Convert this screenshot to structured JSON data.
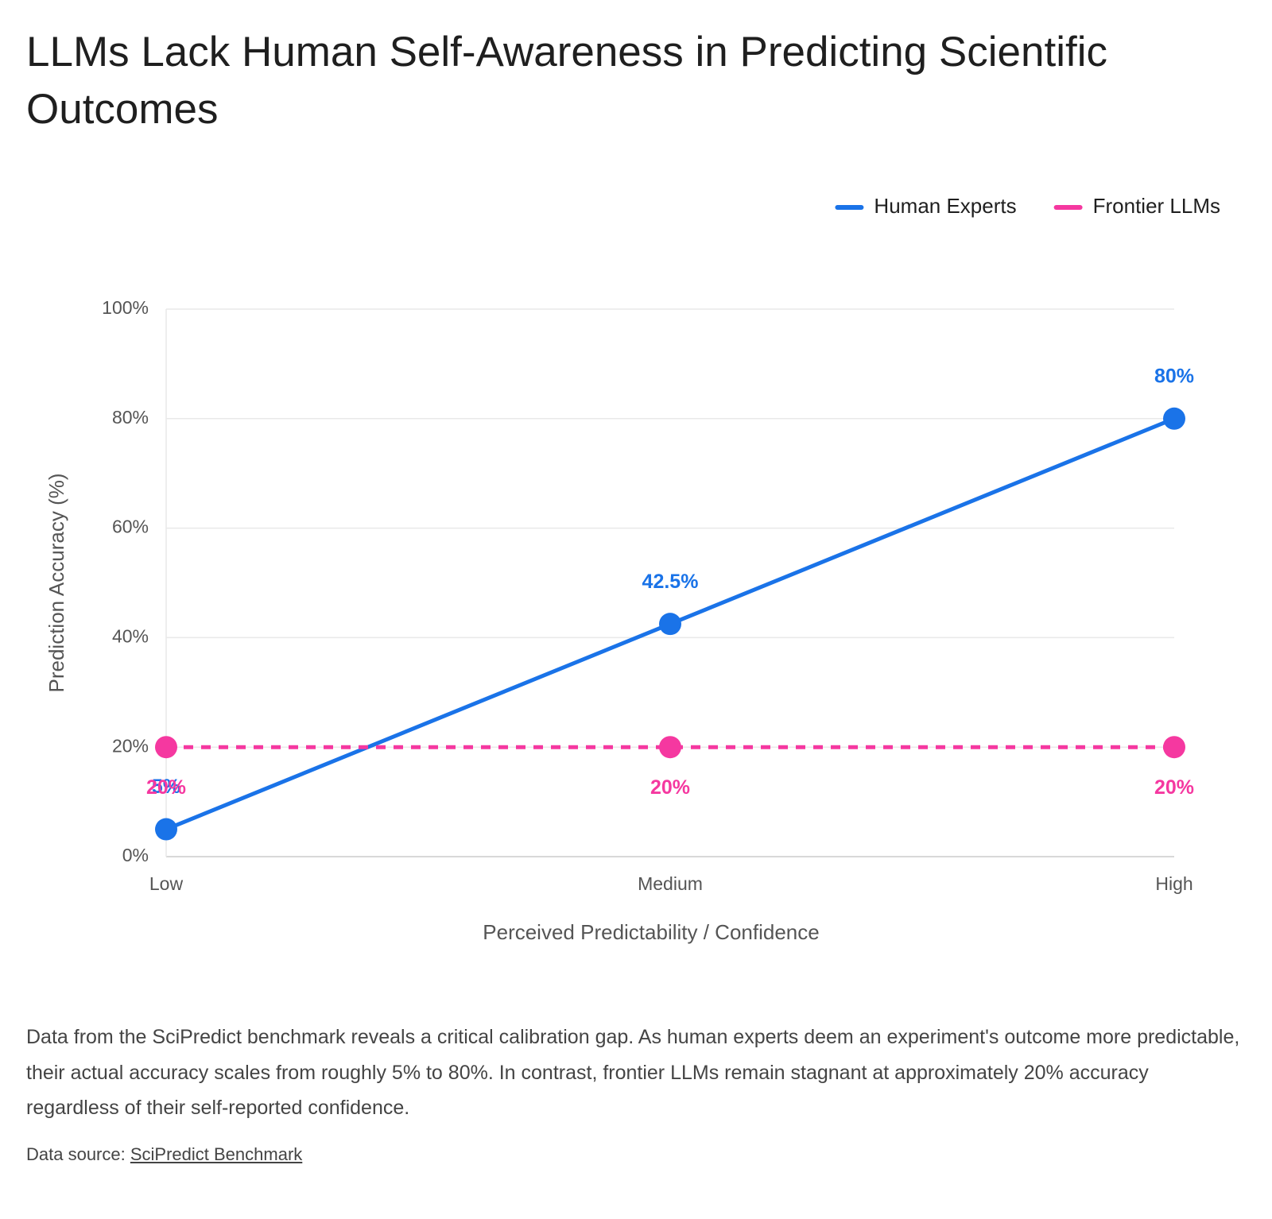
{
  "chart_data": {
    "type": "line",
    "title": "LLMs Lack Human Self-Awareness in Predicting Scientific Outcomes",
    "x_label": "Perceived Predictability / Confidence",
    "y_label": "Prediction Accuracy (%)",
    "categories": [
      "Low",
      "Medium",
      "High"
    ],
    "series": [
      {
        "name": "Human Experts",
        "color": "#1a73e8",
        "line_style": "solid",
        "label_position": "above",
        "values": [
          5,
          42.5,
          80
        ],
        "value_labels": [
          "5%",
          "42.5%",
          "80%"
        ]
      },
      {
        "name": "Frontier LLMs",
        "color": "#f538a0",
        "line_style": "dashed",
        "label_position": "below",
        "values": [
          20,
          20,
          20
        ],
        "value_labels": [
          "20%",
          "20%",
          "20%"
        ]
      }
    ],
    "ylim": [
      0,
      100
    ],
    "yticks": [
      {
        "value": 0,
        "label": "0%"
      },
      {
        "value": 20,
        "label": "20%"
      },
      {
        "value": 40,
        "label": "40%"
      },
      {
        "value": 60,
        "label": "60%"
      },
      {
        "value": 80,
        "label": "80%"
      },
      {
        "value": 100,
        "label": "100%"
      }
    ],
    "grid": true,
    "legend": "top-right",
    "description": "Data from the SciPredict benchmark reveals a critical calibration gap. As human experts deem an experiment's outcome more predictable, their actual accuracy scales from roughly 5% to 80%. In contrast, frontier LLMs remain stagnant at approximately 20% accuracy regardless of their self-reported confidence.",
    "source_label": "Data source:",
    "source_link": "SciPredict Benchmark"
  }
}
